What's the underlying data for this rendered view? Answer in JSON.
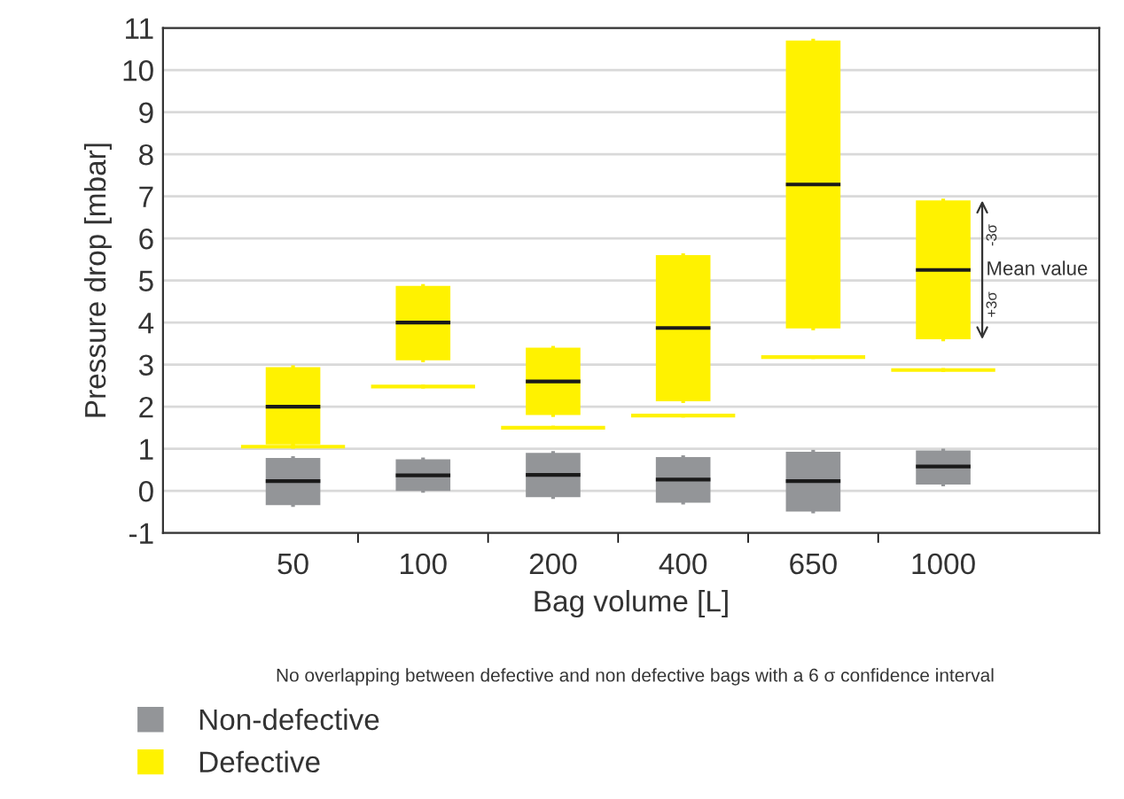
{
  "chart_data": {
    "type": "box",
    "xlabel": "Bag volume [L]",
    "ylabel": "Pressure drop [mbar]",
    "categories": [
      "50",
      "100",
      "200",
      "400",
      "650",
      "1000"
    ],
    "series": [
      {
        "name": "Non-defective",
        "color": "#939598",
        "boxes": [
          {
            "low": -0.34,
            "q1": -0.34,
            "median": 0.23,
            "q3": 0.78,
            "high": 0.78
          },
          {
            "low": 0,
            "q1": 0,
            "median": 0.37,
            "q3": 0.75,
            "high": 0.75
          },
          {
            "low": -0.15,
            "q1": -0.15,
            "median": 0.38,
            "q3": 0.9,
            "high": 0.9
          },
          {
            "low": -0.28,
            "q1": -0.28,
            "median": 0.27,
            "q3": 0.8,
            "high": 0.8
          },
          {
            "low": -0.49,
            "q1": -0.49,
            "median": 0.23,
            "q3": 0.93,
            "high": 0.93
          },
          {
            "low": 0.15,
            "q1": 0.15,
            "median": 0.58,
            "q3": 0.96,
            "high": 0.96
          }
        ]
      },
      {
        "name": "Defective",
        "color": "#fff200",
        "boxes": [
          {
            "low": 1.1,
            "q1": 1.1,
            "median": 2.0,
            "q3": 2.94,
            "high": 2.94
          },
          {
            "low": 3.1,
            "q1": 3.1,
            "median": 4.0,
            "q3": 4.87,
            "high": 4.87
          },
          {
            "low": 1.8,
            "q1": 1.8,
            "median": 2.6,
            "q3": 3.4,
            "high": 3.4
          },
          {
            "low": 2.13,
            "q1": 2.13,
            "median": 3.87,
            "q3": 5.6,
            "high": 5.6
          },
          {
            "low": 3.86,
            "q1": 3.86,
            "median": 7.28,
            "q3": 10.7,
            "high": 10.7
          },
          {
            "low": 3.6,
            "q1": 3.6,
            "median": 5.25,
            "q3": 6.9,
            "high": 6.9
          }
        ]
      },
      {
        "color": "#fff200",
        "boxes": [
          {
            "low": 1.05,
            "q1": 1.05,
            "median": 1.05,
            "q3": 1.05,
            "high": 1.05
          },
          {
            "low": 2.48,
            "q1": 2.48,
            "median": 2.48,
            "q3": 2.48,
            "high": 2.48
          },
          {
            "low": 1.5,
            "q1": 1.5,
            "median": 1.5,
            "q3": 1.5,
            "high": 1.5
          },
          {
            "low": 1.79,
            "q1": 1.79,
            "median": 1.79,
            "q3": 1.79,
            "high": 1.79
          },
          {
            "low": 3.18,
            "q1": 3.18,
            "median": 3.18,
            "q3": 3.18,
            "high": 3.18
          },
          {
            "low": 2.87,
            "q1": 2.87,
            "median": 2.87,
            "q3": 2.87,
            "high": 2.87
          }
        ]
      }
    ],
    "ylim": [
      -1,
      11
    ],
    "yticks": [
      {
        "value": -1,
        "label": "-1"
      },
      0,
      1,
      2,
      3,
      4,
      5,
      6,
      7,
      8,
      9,
      10,
      11
    ],
    "grid": "y",
    "legend": "bottom left",
    "annotations": [
      {
        "text": "Mean value",
        "x": "1000",
        "y": 5.25
      },
      "-3σ",
      "+3σ",
      "No overlapping between defective and non defective bags with a 6 σ confidence interval"
    ]
  }
}
